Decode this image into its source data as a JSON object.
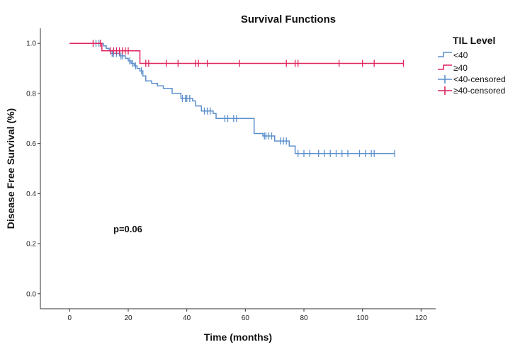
{
  "chart_data": {
    "type": "line",
    "subtype": "kaplan-meier",
    "title": "Survival Functions",
    "xlabel": "Time (months)",
    "ylabel": "Disease Free Survival (%)",
    "xlim": [
      -10,
      125
    ],
    "ylim": [
      -0.06,
      1.06
    ],
    "xticks": [
      0,
      20,
      40,
      60,
      80,
      100,
      120
    ],
    "yticks": [
      0.0,
      0.2,
      0.4,
      0.6,
      0.8,
      1.0
    ],
    "ytick_labels": [
      "0.0",
      "0.2",
      "0.4",
      "0.6",
      "0.8",
      "1.0"
    ],
    "grid": false,
    "legend_position": "right",
    "legend_title": "TIL Level",
    "legend": [
      "<40",
      "≥40",
      "<40-censored",
      "≥40-censored"
    ],
    "annotation": "p=0.06",
    "colors": {
      "low": "#5b8fcc",
      "high": "#e0245e"
    },
    "series": [
      {
        "name": "<40",
        "steps": [
          [
            0,
            1.0
          ],
          [
            11,
            1.0
          ],
          [
            11.5,
            0.99
          ],
          [
            12.5,
            0.98
          ],
          [
            13.5,
            0.97
          ],
          [
            14,
            0.96
          ],
          [
            17,
            0.95
          ],
          [
            19,
            0.94
          ],
          [
            20,
            0.93
          ],
          [
            21,
            0.92
          ],
          [
            22,
            0.91
          ],
          [
            23,
            0.9
          ],
          [
            24,
            0.89
          ],
          [
            25,
            0.87
          ],
          [
            26,
            0.85
          ],
          [
            28,
            0.84
          ],
          [
            30,
            0.83
          ],
          [
            32,
            0.82
          ],
          [
            35,
            0.8
          ],
          [
            38,
            0.78
          ],
          [
            42,
            0.77
          ],
          [
            43,
            0.75
          ],
          [
            45,
            0.73
          ],
          [
            49,
            0.72
          ],
          [
            50,
            0.7
          ],
          [
            63,
            0.64
          ],
          [
            66,
            0.63
          ],
          [
            70,
            0.61
          ],
          [
            75,
            0.59
          ],
          [
            77,
            0.56
          ],
          [
            111,
            0.56
          ]
        ],
        "censored": [
          [
            9,
            1.0
          ],
          [
            10,
            1.0
          ],
          [
            14.5,
            0.96
          ],
          [
            15,
            0.96
          ],
          [
            16,
            0.96
          ],
          [
            17.5,
            0.95
          ],
          [
            18,
            0.95
          ],
          [
            20.5,
            0.93
          ],
          [
            21.5,
            0.92
          ],
          [
            22.5,
            0.91
          ],
          [
            24.5,
            0.89
          ],
          [
            38.5,
            0.78
          ],
          [
            39.5,
            0.78
          ],
          [
            40,
            0.78
          ],
          [
            41,
            0.78
          ],
          [
            46,
            0.73
          ],
          [
            47,
            0.73
          ],
          [
            48,
            0.73
          ],
          [
            53,
            0.7
          ],
          [
            54,
            0.7
          ],
          [
            56,
            0.7
          ],
          [
            57,
            0.7
          ],
          [
            66.5,
            0.63
          ],
          [
            67,
            0.63
          ],
          [
            68,
            0.63
          ],
          [
            69,
            0.63
          ],
          [
            72,
            0.61
          ],
          [
            73,
            0.61
          ],
          [
            74,
            0.61
          ],
          [
            78,
            0.56
          ],
          [
            80,
            0.56
          ],
          [
            82,
            0.56
          ],
          [
            85,
            0.56
          ],
          [
            87,
            0.56
          ],
          [
            89,
            0.56
          ],
          [
            91,
            0.56
          ],
          [
            93,
            0.56
          ],
          [
            95,
            0.56
          ],
          [
            99,
            0.56
          ],
          [
            101,
            0.56
          ],
          [
            103,
            0.56
          ],
          [
            104,
            0.56
          ],
          [
            111,
            0.56
          ]
        ]
      },
      {
        "name": "≥40",
        "steps": [
          [
            0,
            1.0
          ],
          [
            11,
            1.0
          ],
          [
            11,
            0.97
          ],
          [
            24,
            0.97
          ],
          [
            24,
            0.92
          ],
          [
            114,
            0.92
          ]
        ],
        "censored": [
          [
            8,
            1.0
          ],
          [
            10.5,
            1.0
          ],
          [
            14,
            0.97
          ],
          [
            15,
            0.97
          ],
          [
            16,
            0.97
          ],
          [
            17,
            0.97
          ],
          [
            18,
            0.97
          ],
          [
            19,
            0.97
          ],
          [
            20,
            0.97
          ],
          [
            26,
            0.92
          ],
          [
            27,
            0.92
          ],
          [
            33,
            0.92
          ],
          [
            37,
            0.92
          ],
          [
            43,
            0.92
          ],
          [
            44,
            0.92
          ],
          [
            47,
            0.92
          ],
          [
            58,
            0.92
          ],
          [
            74,
            0.92
          ],
          [
            77,
            0.92
          ],
          [
            78,
            0.92
          ],
          [
            92,
            0.92
          ],
          [
            100,
            0.92
          ],
          [
            104,
            0.92
          ],
          [
            114,
            0.92
          ]
        ]
      }
    ]
  }
}
